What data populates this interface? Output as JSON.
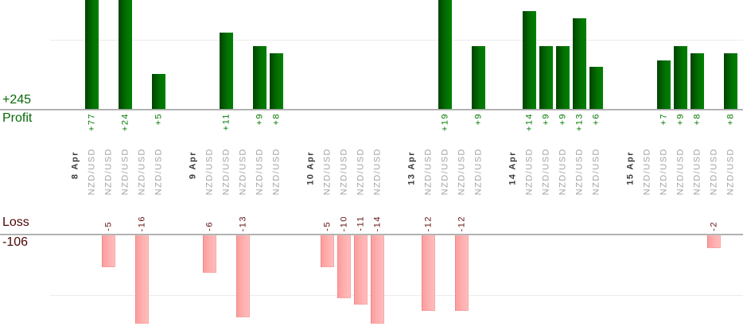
{
  "summary": {
    "profit_total": "+245",
    "profit_label": "Profit",
    "loss_label": "Loss",
    "loss_total": "-106"
  },
  "colors": {
    "profit_text": "#077a07",
    "summary_profit_text": "#066806",
    "loss_value_text": "#651212",
    "summary_loss_text": "#4c0505",
    "bar_green_dark": "#014301",
    "bar_green_light": "#008000",
    "bar_pink_dark": "#fa9b9b",
    "bar_pink_light": "#ffbdbd",
    "axis_line": "#979797",
    "gridline": "#ececec",
    "date_text": "#3a3a3a",
    "instrument_text": "#a2a2a2"
  },
  "chart_data": {
    "type": "bar",
    "title": "",
    "layout": "profit bars above upper axis, loss bars below lower axis, rotated value and category labels",
    "instrument": "NZD/USD",
    "profit_axis": {
      "label": "Profit",
      "total": 245,
      "gridline": 10
    },
    "loss_axis": {
      "label": "Loss",
      "total": -106,
      "gridline": -10
    },
    "groups": [
      {
        "date": "8 Apr",
        "trades": [
          77,
          -5,
          24,
          -16,
          5
        ]
      },
      {
        "date": "9 Apr",
        "trades": [
          -6,
          11,
          -13,
          9,
          8
        ]
      },
      {
        "date": "10 Apr",
        "trades": [
          -5,
          -10,
          -11,
          -14
        ]
      },
      {
        "date": "13 Apr",
        "trades": [
          -12,
          19,
          -12,
          9
        ]
      },
      {
        "date": "14 Apr",
        "trades": [
          14,
          9,
          9,
          13,
          6
        ]
      },
      {
        "date": "15 Apr",
        "trades": [
          0,
          7,
          9,
          8,
          -2,
          8
        ]
      }
    ]
  }
}
